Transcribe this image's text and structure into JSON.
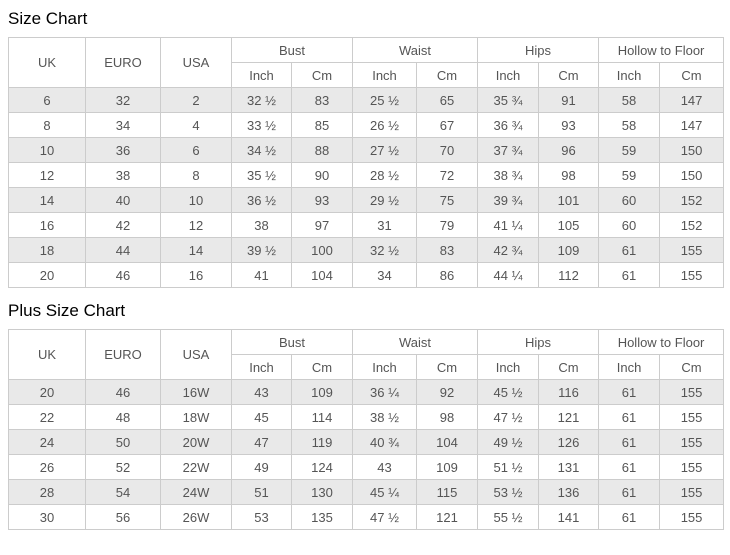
{
  "colors": {
    "stripe": "#e9e9e9",
    "border": "#cccccc",
    "text": "#555555",
    "title": "#000000",
    "background": "#ffffff"
  },
  "tables": [
    {
      "title": "Size Chart",
      "column_groups": [
        {
          "label": "UK"
        },
        {
          "label": "EURO"
        },
        {
          "label": "USA"
        },
        {
          "label": "Bust",
          "sub": [
            "Inch",
            "Cm"
          ]
        },
        {
          "label": "Waist",
          "sub": [
            "Inch",
            "Cm"
          ]
        },
        {
          "label": "Hips",
          "sub": [
            "Inch",
            "Cm"
          ]
        },
        {
          "label": "Hollow to Floor",
          "sub": [
            "Inch",
            "Cm"
          ]
        }
      ],
      "rows": [
        [
          "6",
          "32",
          "2",
          "32 ½",
          "83",
          "25 ½",
          "65",
          "35 ¾",
          "91",
          "58",
          "147"
        ],
        [
          "8",
          "34",
          "4",
          "33 ½",
          "85",
          "26 ½",
          "67",
          "36 ¾",
          "93",
          "58",
          "147"
        ],
        [
          "10",
          "36",
          "6",
          "34 ½",
          "88",
          "27 ½",
          "70",
          "37 ¾",
          "96",
          "59",
          "150"
        ],
        [
          "12",
          "38",
          "8",
          "35 ½",
          "90",
          "28 ½",
          "72",
          "38 ¾",
          "98",
          "59",
          "150"
        ],
        [
          "14",
          "40",
          "10",
          "36 ½",
          "93",
          "29 ½",
          "75",
          "39 ¾",
          "101",
          "60",
          "152"
        ],
        [
          "16",
          "42",
          "12",
          "38",
          "97",
          "31",
          "79",
          "41 ¼",
          "105",
          "60",
          "152"
        ],
        [
          "18",
          "44",
          "14",
          "39 ½",
          "100",
          "32 ½",
          "83",
          "42 ¾",
          "109",
          "61",
          "155"
        ],
        [
          "20",
          "46",
          "16",
          "41",
          "104",
          "34",
          "86",
          "44 ¼",
          "112",
          "61",
          "155"
        ]
      ]
    },
    {
      "title": "Plus Size Chart",
      "column_groups": [
        {
          "label": "UK"
        },
        {
          "label": "EURO"
        },
        {
          "label": "USA"
        },
        {
          "label": "Bust",
          "sub": [
            "Inch",
            "Cm"
          ]
        },
        {
          "label": "Waist",
          "sub": [
            "Inch",
            "Cm"
          ]
        },
        {
          "label": "Hips",
          "sub": [
            "Inch",
            "Cm"
          ]
        },
        {
          "label": "Hollow to Floor",
          "sub": [
            "Inch",
            "Cm"
          ]
        }
      ],
      "rows": [
        [
          "20",
          "46",
          "16W",
          "43",
          "109",
          "36 ¼",
          "92",
          "45 ½",
          "116",
          "61",
          "155"
        ],
        [
          "22",
          "48",
          "18W",
          "45",
          "114",
          "38 ½",
          "98",
          "47 ½",
          "121",
          "61",
          "155"
        ],
        [
          "24",
          "50",
          "20W",
          "47",
          "119",
          "40 ¾",
          "104",
          "49 ½",
          "126",
          "61",
          "155"
        ],
        [
          "26",
          "52",
          "22W",
          "49",
          "124",
          "43",
          "109",
          "51 ½",
          "131",
          "61",
          "155"
        ],
        [
          "28",
          "54",
          "24W",
          "51",
          "130",
          "45 ¼",
          "115",
          "53 ½",
          "136",
          "61",
          "155"
        ],
        [
          "30",
          "56",
          "26W",
          "53",
          "135",
          "47 ½",
          "121",
          "55 ½",
          "141",
          "61",
          "155"
        ]
      ]
    }
  ]
}
